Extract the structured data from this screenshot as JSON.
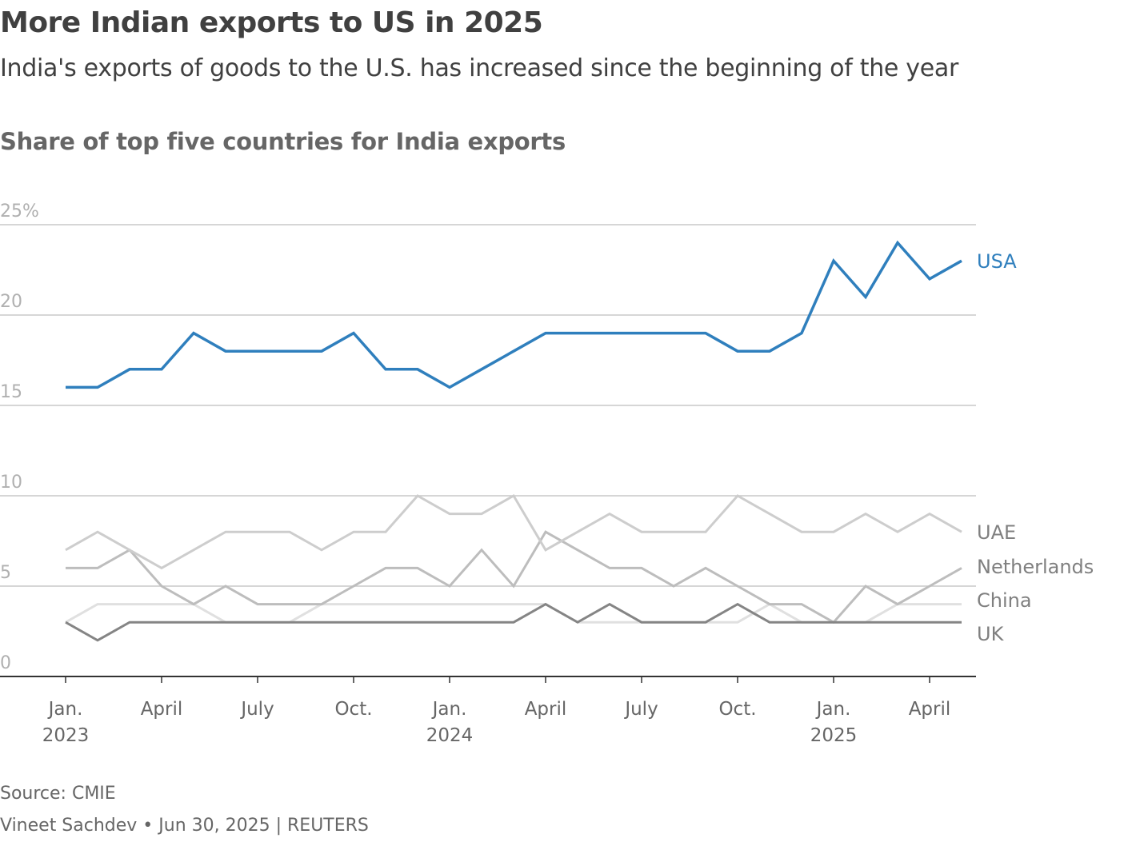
{
  "header": {
    "title": "More Indian exports to US in 2025",
    "subtitle": "India's exports of goods to the U.S. has increased since the beginning of the year"
  },
  "footer": {
    "source": "Source: CMIE",
    "byline": "Vineet Sachdev • Jun 30, 2025 | REUTERS"
  },
  "chart_data": {
    "type": "line",
    "title": "Share of top five countries for India exports",
    "ylim": [
      0,
      25
    ],
    "yticks": [
      {
        "v": 0,
        "label": "0"
      },
      {
        "v": 5,
        "label": "5"
      },
      {
        "v": 10,
        "label": "10"
      },
      {
        "v": 15,
        "label": "15"
      },
      {
        "v": 20,
        "label": "20"
      },
      {
        "v": 25,
        "label": "25%"
      }
    ],
    "xticks": [
      {
        "i": 0,
        "label": "Jan.",
        "sub": "2023"
      },
      {
        "i": 3,
        "label": "April",
        "sub": ""
      },
      {
        "i": 6,
        "label": "July",
        "sub": ""
      },
      {
        "i": 9,
        "label": "Oct.",
        "sub": ""
      },
      {
        "i": 12,
        "label": "Jan.",
        "sub": "2024"
      },
      {
        "i": 15,
        "label": "April",
        "sub": ""
      },
      {
        "i": 18,
        "label": "July",
        "sub": ""
      },
      {
        "i": 21,
        "label": "Oct.",
        "sub": ""
      },
      {
        "i": 24,
        "label": "Jan.",
        "sub": "2025"
      },
      {
        "i": 27,
        "label": "April",
        "sub": ""
      }
    ],
    "x": [
      "2023-01",
      "2023-02",
      "2023-03",
      "2023-04",
      "2023-05",
      "2023-06",
      "2023-07",
      "2023-08",
      "2023-09",
      "2023-10",
      "2023-11",
      "2023-12",
      "2024-01",
      "2024-02",
      "2024-03",
      "2024-04",
      "2024-05",
      "2024-06",
      "2024-07",
      "2024-08",
      "2024-09",
      "2024-10",
      "2024-11",
      "2024-12",
      "2025-01",
      "2025-02",
      "2025-03",
      "2025-04",
      "2025-05"
    ],
    "grid": true,
    "series": [
      {
        "name": "China",
        "color": "#e0e0e0",
        "label_color": "#808080",
        "values": [
          3,
          4,
          4,
          4,
          4,
          3,
          3,
          3,
          4,
          4,
          4,
          4,
          4,
          4,
          4,
          4,
          3,
          3,
          3,
          3,
          3,
          3,
          4,
          3,
          3,
          3,
          4,
          4,
          4
        ]
      },
      {
        "name": "Netherlands",
        "color": "#bdbdbd",
        "label_color": "#808080",
        "values": [
          6,
          6,
          7,
          5,
          4,
          5,
          4,
          4,
          4,
          5,
          6,
          6,
          5,
          7,
          5,
          8,
          7,
          6,
          6,
          5,
          6,
          5,
          4,
          4,
          3,
          5,
          4,
          5,
          6
        ]
      },
      {
        "name": "UAE",
        "color": "#cdcdcd",
        "label_color": "#808080",
        "values": [
          7,
          8,
          7,
          6,
          7,
          8,
          8,
          8,
          7,
          8,
          8,
          10,
          9,
          9,
          10,
          7,
          8,
          9,
          8,
          8,
          8,
          10,
          9,
          8,
          8,
          9,
          8,
          9,
          8
        ]
      },
      {
        "name": "UK",
        "color": "#858585",
        "label_color": "#808080",
        "values": [
          3,
          2,
          3,
          3,
          3,
          3,
          3,
          3,
          3,
          3,
          3,
          3,
          3,
          3,
          3,
          4,
          3,
          4,
          3,
          3,
          3,
          4,
          3,
          3,
          3,
          3,
          3,
          3,
          3
        ]
      },
      {
        "name": "USA",
        "color": "#2f7fbd",
        "label_color": "#2f7fbd",
        "values": [
          16,
          16,
          17,
          17,
          19,
          18,
          18,
          18,
          18,
          19,
          17,
          17,
          16,
          17,
          18,
          19,
          19,
          19,
          19,
          19,
          19,
          18,
          18,
          19,
          23,
          21,
          24,
          22,
          23
        ]
      }
    ]
  }
}
